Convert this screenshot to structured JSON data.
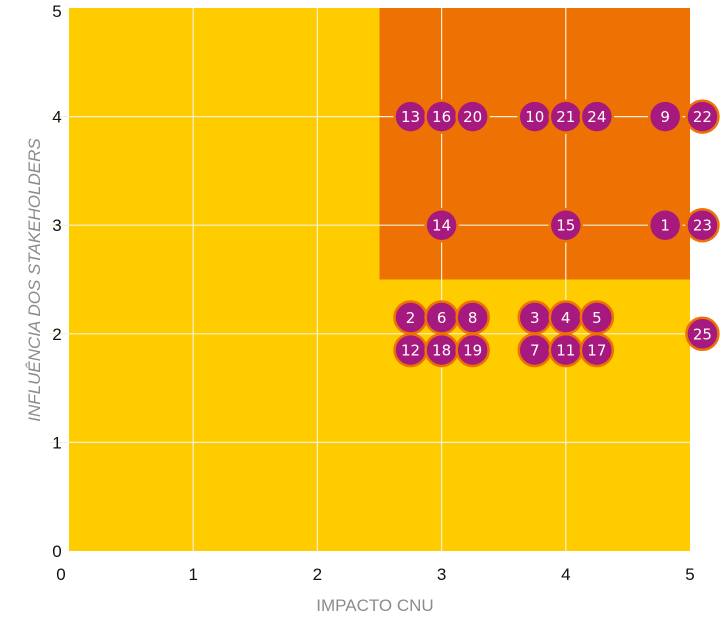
{
  "chart_data": {
    "type": "scatter",
    "xlabel": "IMPACTO CNU",
    "ylabel": "INFLUÊNCIA DOS STAKEHOLDERS",
    "xlim": [
      0,
      5
    ],
    "ylim": [
      0,
      5
    ],
    "x_ticks": [
      "0",
      "1",
      "2",
      "3",
      "4",
      "5"
    ],
    "y_ticks": [
      "0",
      "1",
      "2",
      "3",
      "4",
      "5"
    ],
    "grid": true,
    "colors": {
      "background_zone": "#FFCC00",
      "priority_zone": "#EE7203",
      "point": "#A6197E",
      "point_edge": "#EE7203",
      "grid": "#F3F0D8",
      "label": "#FFFFFF"
    },
    "priority_zone": {
      "x_range": [
        2.5,
        5
      ],
      "y_range": [
        2.5,
        5
      ]
    },
    "points": [
      {
        "id": "1",
        "x": 4.8,
        "y": 3.0
      },
      {
        "id": "2",
        "x": 2.75,
        "y": 2.15
      },
      {
        "id": "3",
        "x": 3.75,
        "y": 2.15
      },
      {
        "id": "4",
        "x": 4.0,
        "y": 2.15
      },
      {
        "id": "5",
        "x": 4.25,
        "y": 2.15
      },
      {
        "id": "6",
        "x": 3.0,
        "y": 2.15
      },
      {
        "id": "7",
        "x": 3.75,
        "y": 1.85
      },
      {
        "id": "8",
        "x": 3.25,
        "y": 2.15
      },
      {
        "id": "9",
        "x": 4.8,
        "y": 4.0
      },
      {
        "id": "10",
        "x": 3.75,
        "y": 4.0
      },
      {
        "id": "11",
        "x": 4.0,
        "y": 1.85
      },
      {
        "id": "12",
        "x": 2.75,
        "y": 1.85
      },
      {
        "id": "13",
        "x": 2.75,
        "y": 4.0
      },
      {
        "id": "14",
        "x": 3.0,
        "y": 3.0
      },
      {
        "id": "15",
        "x": 4.0,
        "y": 3.0
      },
      {
        "id": "16",
        "x": 3.0,
        "y": 4.0
      },
      {
        "id": "17",
        "x": 4.25,
        "y": 1.85
      },
      {
        "id": "18",
        "x": 3.0,
        "y": 1.85
      },
      {
        "id": "19",
        "x": 3.25,
        "y": 1.85
      },
      {
        "id": "20",
        "x": 3.25,
        "y": 4.0
      },
      {
        "id": "21",
        "x": 4.0,
        "y": 4.0
      },
      {
        "id": "22",
        "x": 5.1,
        "y": 4.0
      },
      {
        "id": "23",
        "x": 5.1,
        "y": 3.0
      },
      {
        "id": "24",
        "x": 4.25,
        "y": 4.0
      },
      {
        "id": "25",
        "x": 5.1,
        "y": 2.0
      }
    ]
  }
}
